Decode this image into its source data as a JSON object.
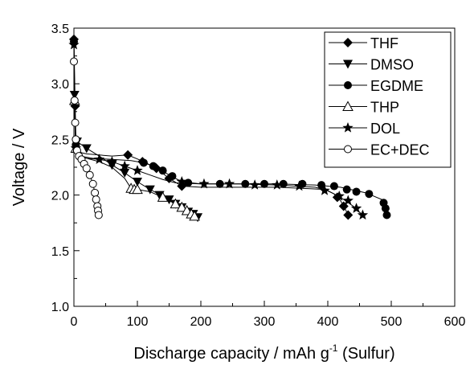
{
  "chart_data": {
    "type": "line",
    "xlabel": "Discharge capacity / mAh g",
    "xlabel_sup": "-1",
    "xlabel_suffix": " (Sulfur)",
    "ylabel": "Voltage / V",
    "xlim": [
      0,
      600
    ],
    "ylim": [
      1.0,
      3.5
    ],
    "xticks": [
      0,
      100,
      200,
      300,
      400,
      500,
      600
    ],
    "yticks": [
      1.0,
      1.5,
      2.0,
      2.5,
      3.0,
      3.5
    ],
    "xtick_labels": [
      "0",
      "100",
      "200",
      "300",
      "400",
      "500",
      "600"
    ],
    "ytick_labels": [
      "1.0",
      "1.5",
      "2.0",
      "2.5",
      "3.0",
      "3.5"
    ],
    "grid": false,
    "legend_position": "top-right",
    "series": [
      {
        "name": "THF",
        "marker": "diamond",
        "x": [
          0,
          1,
          2,
          3,
          5,
          8,
          12,
          20,
          40,
          60,
          85,
          110,
          130,
          150,
          170,
          200,
          260,
          320,
          360,
          395,
          410,
          420,
          427,
          432
        ],
        "y": [
          3.4,
          3.1,
          2.8,
          2.55,
          2.44,
          2.4,
          2.38,
          2.37,
          2.36,
          2.35,
          2.36,
          2.3,
          2.24,
          2.15,
          2.08,
          2.07,
          2.07,
          2.07,
          2.06,
          2.05,
          2.01,
          1.95,
          1.88,
          1.82
        ],
        "markers_x": [
          0,
          2,
          85,
          108,
          130,
          150,
          170,
          415,
          425,
          432
        ],
        "markers_y": [
          3.4,
          2.8,
          2.36,
          2.3,
          2.24,
          2.15,
          2.08,
          1.98,
          1.9,
          1.82
        ]
      },
      {
        "name": "DMSO",
        "marker": "triangle-down",
        "x": [
          0,
          1,
          2,
          3,
          5,
          10,
          20,
          40,
          60,
          80,
          100,
          120,
          140,
          160,
          180,
          195
        ],
        "y": [
          3.35,
          2.9,
          2.6,
          2.5,
          2.48,
          2.46,
          2.42,
          2.35,
          2.27,
          2.2,
          2.12,
          2.05,
          1.99,
          1.92,
          1.85,
          1.8
        ],
        "markers_x": [
          1,
          5,
          20,
          60,
          80,
          100,
          120,
          135,
          150,
          160,
          170,
          180,
          188,
          195
        ],
        "markers_y": [
          2.9,
          2.48,
          2.42,
          2.27,
          2.2,
          2.12,
          2.05,
          2.0,
          1.96,
          1.92,
          1.89,
          1.85,
          1.83,
          1.8
        ]
      },
      {
        "name": "EGDME",
        "marker": "circle-filled",
        "x": [
          0,
          1,
          2,
          3,
          5,
          10,
          30,
          60,
          90,
          110,
          130,
          150,
          170,
          200,
          260,
          320,
          380,
          420,
          460,
          485,
          489,
          492,
          493
        ],
        "y": [
          3.38,
          3.0,
          2.7,
          2.45,
          2.38,
          2.35,
          2.33,
          2.32,
          2.31,
          2.29,
          2.25,
          2.18,
          2.12,
          2.1,
          2.1,
          2.1,
          2.09,
          2.07,
          2.02,
          1.96,
          1.91,
          1.86,
          1.82
        ],
        "markers_x": [
          0,
          3,
          110,
          125,
          140,
          155,
          180,
          230,
          270,
          300,
          330,
          360,
          390,
          410,
          430,
          445,
          465,
          488,
          491,
          493
        ],
        "markers_y": [
          3.38,
          2.45,
          2.29,
          2.26,
          2.22,
          2.17,
          2.11,
          2.1,
          2.1,
          2.1,
          2.1,
          2.1,
          2.09,
          2.08,
          2.05,
          2.03,
          2.01,
          1.93,
          1.88,
          1.82
        ]
      },
      {
        "name": "THP",
        "marker": "triangle-up-open",
        "x": [
          0,
          1,
          2,
          3,
          5,
          10,
          20,
          40,
          60,
          80,
          90,
          100,
          120,
          140,
          160,
          175,
          190
        ],
        "y": [
          3.3,
          2.85,
          2.55,
          2.42,
          2.38,
          2.35,
          2.33,
          2.3,
          2.25,
          2.15,
          2.06,
          2.05,
          2.03,
          1.98,
          1.92,
          1.87,
          1.81
        ],
        "markers_x": [
          1,
          3,
          90,
          95,
          100,
          140,
          160,
          170,
          178,
          185,
          190
        ],
        "markers_y": [
          2.85,
          2.42,
          2.06,
          2.05,
          2.05,
          1.98,
          1.92,
          1.89,
          1.86,
          1.83,
          1.81
        ]
      },
      {
        "name": "DOL",
        "marker": "star",
        "x": [
          0,
          1,
          2,
          3,
          5,
          10,
          20,
          40,
          60,
          80,
          100,
          120,
          140,
          160,
          200,
          260,
          320,
          380,
          400,
          420,
          440,
          455
        ],
        "y": [
          3.35,
          2.9,
          2.6,
          2.42,
          2.36,
          2.34,
          2.33,
          2.32,
          2.3,
          2.26,
          2.22,
          2.18,
          2.14,
          2.11,
          2.1,
          2.1,
          2.09,
          2.07,
          2.04,
          1.98,
          1.9,
          1.82
        ],
        "markers_x": [
          0,
          3,
          40,
          60,
          80,
          100,
          170,
          205,
          245,
          285,
          320,
          355,
          395,
          418,
          432,
          445,
          455
        ],
        "markers_y": [
          3.35,
          2.42,
          2.32,
          2.3,
          2.26,
          2.22,
          2.12,
          2.1,
          2.1,
          2.09,
          2.09,
          2.08,
          2.04,
          1.99,
          1.95,
          1.88,
          1.82
        ]
      },
      {
        "name": "EC+DEC",
        "marker": "circle-open",
        "x": [
          0,
          1,
          2,
          3,
          5,
          8,
          12,
          16,
          20,
          25,
          30,
          33,
          35,
          37,
          38,
          39
        ],
        "y": [
          3.2,
          2.85,
          2.65,
          2.5,
          2.4,
          2.35,
          2.32,
          2.28,
          2.24,
          2.18,
          2.1,
          2.02,
          1.96,
          1.9,
          1.86,
          1.82
        ],
        "markers_x": [
          0,
          1,
          2,
          3,
          5,
          8,
          12,
          16,
          20,
          25,
          30,
          33,
          35,
          37,
          38,
          39
        ],
        "markers_y": [
          3.2,
          2.85,
          2.65,
          2.5,
          2.4,
          2.35,
          2.32,
          2.28,
          2.24,
          2.18,
          2.1,
          2.02,
          1.96,
          1.9,
          1.86,
          1.82
        ]
      }
    ]
  }
}
